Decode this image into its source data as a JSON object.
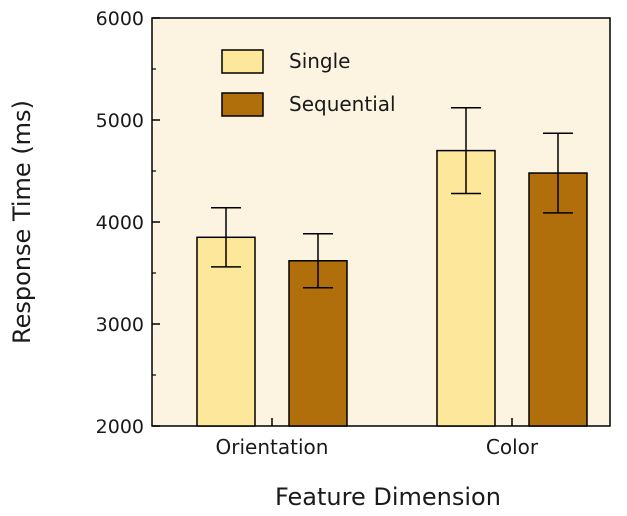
{
  "chart_data": {
    "type": "bar",
    "title": "",
    "xlabel": "Feature Dimension",
    "ylabel": "Response Time (ms)",
    "ylim": [
      2000,
      6000
    ],
    "yticks": [
      2000,
      3000,
      4000,
      5000,
      6000
    ],
    "categories": [
      "Orientation",
      "Color"
    ],
    "series": [
      {
        "name": "Single",
        "color": "#fce79a",
        "values": [
          3850,
          4700
        ],
        "error": [
          290,
          420
        ]
      },
      {
        "name": "Sequential",
        "color": "#b16f0c",
        "values": [
          3620,
          4480
        ],
        "error": [
          265,
          390
        ]
      }
    ],
    "legend_position": "top-left",
    "background": "#fcf3e1",
    "grid": false
  }
}
